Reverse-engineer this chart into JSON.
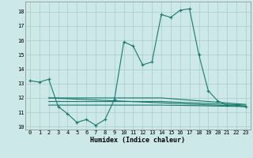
{
  "title": "",
  "xlabel": "Humidex (Indice chaleur)",
  "background_color": "#cce8e8",
  "grid_color": "#aacccc",
  "line_color": "#1a7a6e",
  "xlim": [
    -0.5,
    23.5
  ],
  "ylim": [
    9.8,
    18.7
  ],
  "yticks": [
    10,
    11,
    12,
    13,
    14,
    15,
    16,
    17,
    18
  ],
  "xticks": [
    0,
    1,
    2,
    3,
    4,
    5,
    6,
    7,
    8,
    9,
    10,
    11,
    12,
    13,
    14,
    15,
    16,
    17,
    18,
    19,
    20,
    21,
    22,
    23
  ],
  "line1_x": [
    0,
    1,
    2,
    3,
    4,
    5,
    6,
    7,
    8,
    9,
    10,
    11,
    12,
    13,
    14,
    15,
    16,
    17,
    18,
    19,
    20,
    21,
    22,
    23
  ],
  "line1_y": [
    13.2,
    13.1,
    13.3,
    11.4,
    10.9,
    10.3,
    10.5,
    10.1,
    10.5,
    11.9,
    15.9,
    15.6,
    14.3,
    14.5,
    17.8,
    17.6,
    18.1,
    18.2,
    15.0,
    12.5,
    11.8,
    11.5,
    11.5,
    11.4
  ],
  "line2_x": [
    2,
    23
  ],
  "line2_y": [
    12.0,
    11.4
  ],
  "line3_x": [
    2,
    14,
    23
  ],
  "line3_y": [
    12.0,
    12.0,
    11.55
  ],
  "line4_x": [
    2,
    14,
    23
  ],
  "line4_y": [
    11.5,
    11.5,
    11.4
  ],
  "line5_x": [
    2,
    14,
    23
  ],
  "line5_y": [
    11.75,
    11.75,
    11.5
  ]
}
